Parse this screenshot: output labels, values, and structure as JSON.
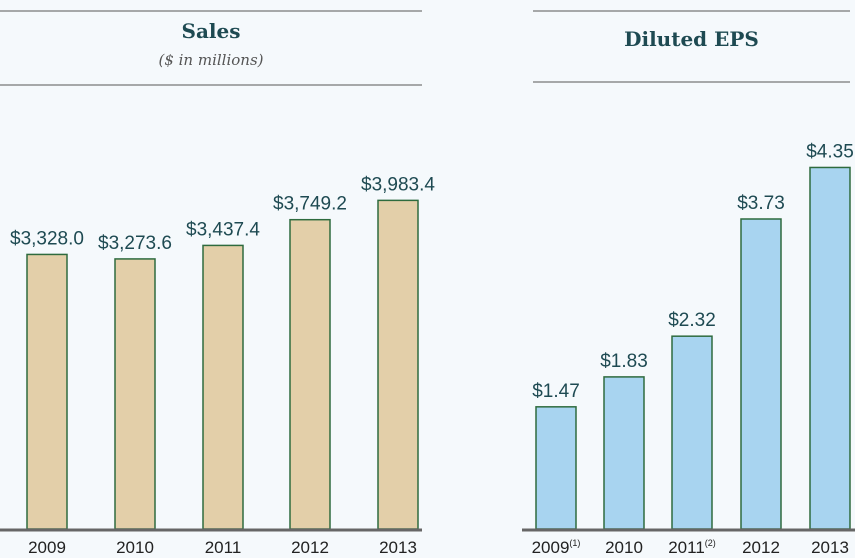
{
  "chart_data": [
    {
      "type": "bar",
      "title": "Sales",
      "subtitle": "($ in millions)",
      "categories": [
        "2009",
        "2010",
        "2011",
        "2012",
        "2013"
      ],
      "values": [
        3328.0,
        3273.6,
        3437.4,
        3749.2,
        3983.4
      ],
      "value_labels": [
        "$3,328.0",
        "$3,273.6",
        "$3,437.4",
        "$3,749.2",
        "$3,983.4"
      ],
      "color": "#e3cfa9",
      "edge_color": "#2e6b3e",
      "ylim": [
        0,
        4000
      ]
    },
    {
      "type": "bar",
      "title": "Diluted EPS",
      "categories": [
        "2009",
        "2010",
        "2011",
        "2012",
        "2013"
      ],
      "category_superscripts": [
        "(1)",
        null,
        "(2)",
        null,
        null
      ],
      "values": [
        1.47,
        1.83,
        2.32,
        3.73,
        4.35
      ],
      "value_labels": [
        "$1.47",
        "$1.83",
        "$2.32",
        "$3.73",
        "$4.35"
      ],
      "color": "#a8d4f0",
      "edge_color": "#2e6b3e",
      "ylim": [
        0,
        4.5
      ]
    }
  ]
}
